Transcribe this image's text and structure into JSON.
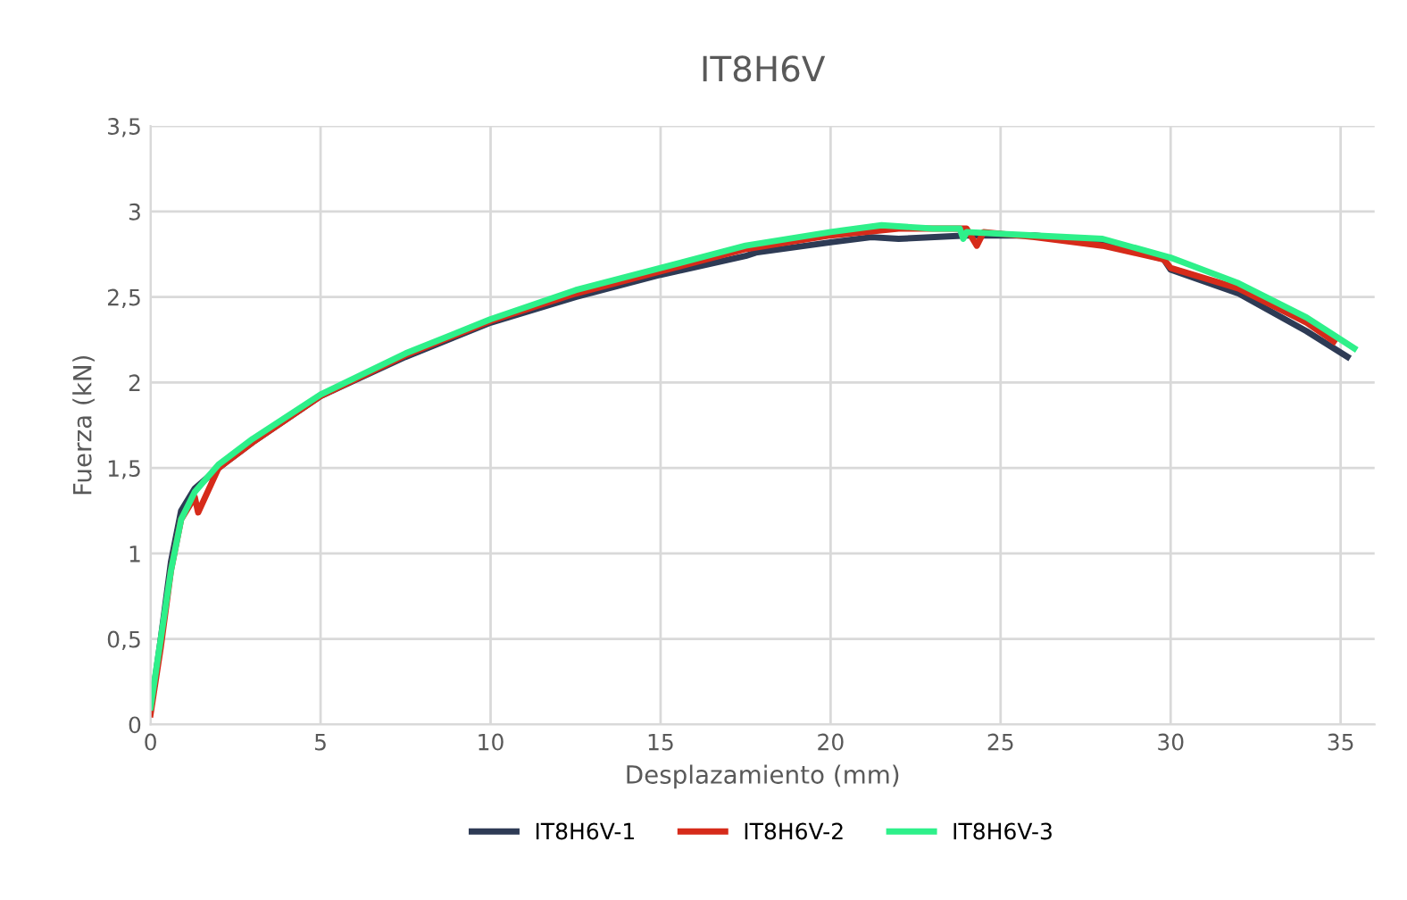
{
  "chart_data": {
    "type": "line",
    "title": "IT8H6V",
    "xlabel": "Desplazamiento (mm)",
    "ylabel": "Fuerza (kN)",
    "xlim": [
      0,
      36
    ],
    "ylim": [
      0,
      3.5
    ],
    "xticks": [
      0,
      5,
      10,
      15,
      20,
      25,
      30,
      35
    ],
    "yticks": [
      {
        "value": 0,
        "label": "0"
      },
      {
        "value": 0.5,
        "label": "0,5"
      },
      {
        "value": 1,
        "label": "1"
      },
      {
        "value": 1.5,
        "label": "1,5"
      },
      {
        "value": 2,
        "label": "2"
      },
      {
        "value": 2.5,
        "label": "2,5"
      },
      {
        "value": 3,
        "label": "3"
      },
      {
        "value": 3.5,
        "label": "3,5"
      }
    ],
    "grid": true,
    "legend": "bottom",
    "marker": "none",
    "line_style": "solid",
    "series": [
      {
        "name": "IT8H6V-1",
        "color": "#2e3b55",
        "x": [
          0,
          0.3,
          0.6,
          0.9,
          1.3,
          2,
          3,
          5,
          7.5,
          10,
          12.5,
          15,
          17.5,
          17.8,
          20,
          21.2,
          22,
          24,
          26,
          28,
          29.8,
          30,
          32,
          34,
          35.2
        ],
        "values": [
          0.08,
          0.5,
          0.95,
          1.25,
          1.38,
          1.5,
          1.65,
          1.92,
          2.15,
          2.35,
          2.5,
          2.63,
          2.74,
          2.76,
          2.82,
          2.85,
          2.84,
          2.86,
          2.86,
          2.82,
          2.72,
          2.66,
          2.52,
          2.3,
          2.15
        ]
      },
      {
        "name": "IT8H6V-2",
        "color": "#d62b1a",
        "x": [
          0,
          0.3,
          0.6,
          0.9,
          1.3,
          1.4,
          2,
          3,
          5,
          7.5,
          10,
          12.5,
          15,
          17.5,
          20,
          22,
          24,
          24.3,
          24.5,
          26,
          28,
          29.8,
          30,
          32,
          34,
          34.8
        ],
        "values": [
          0.06,
          0.45,
          0.9,
          1.2,
          1.33,
          1.24,
          1.5,
          1.65,
          1.92,
          2.16,
          2.36,
          2.52,
          2.65,
          2.78,
          2.86,
          2.9,
          2.9,
          2.8,
          2.88,
          2.85,
          2.8,
          2.72,
          2.67,
          2.55,
          2.35,
          2.24
        ]
      },
      {
        "name": "IT8H6V-3",
        "color": "#2ef08a",
        "x": [
          0,
          0.3,
          0.6,
          0.9,
          1.3,
          2,
          3,
          5,
          7.5,
          10,
          12.5,
          15,
          17.5,
          20,
          21.5,
          23,
          23.8,
          23.9,
          24,
          26,
          28,
          30,
          32,
          34,
          35.4
        ],
        "values": [
          0.1,
          0.5,
          0.9,
          1.2,
          1.36,
          1.52,
          1.67,
          1.93,
          2.17,
          2.37,
          2.54,
          2.67,
          2.8,
          2.88,
          2.92,
          2.9,
          2.9,
          2.84,
          2.88,
          2.86,
          2.84,
          2.73,
          2.58,
          2.38,
          2.2
        ]
      }
    ]
  }
}
